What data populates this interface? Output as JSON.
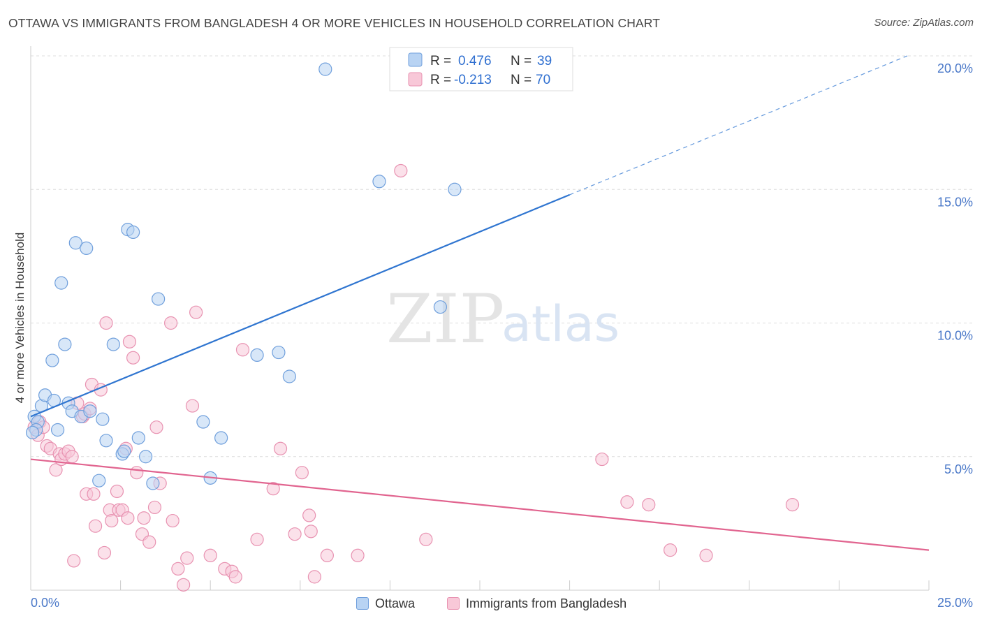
{
  "title": "OTTAWA VS IMMIGRANTS FROM BANGLADESH 4 OR MORE VEHICLES IN HOUSEHOLD CORRELATION CHART",
  "source": "Source: ZipAtlas.com",
  "watermark": {
    "zip": "ZIP",
    "atlas": "atlas"
  },
  "colors": {
    "ottawa_fill": "#b8d3f3",
    "ottawa_stroke": "#6f9fdc",
    "ottawa_line": "#2f75d0",
    "bangladesh_fill": "#f8c8d8",
    "bangladesh_stroke": "#e892b1",
    "bangladesh_line": "#e1648f",
    "tick_text": "#4a78c8",
    "grid": "#dcdcdc"
  },
  "legend": {
    "rows": [
      {
        "r_label": "R =",
        "r_value": "0.476",
        "n_label": "N =",
        "n_value": "39"
      },
      {
        "r_label": "R =",
        "r_value": "-0.213",
        "n_label": "N =",
        "n_value": "70"
      }
    ]
  },
  "bottom_legend": {
    "series1": "Ottawa",
    "series2": "Immigrants from Bangladesh"
  },
  "chart_data": {
    "type": "scatter",
    "title": "OTTAWA VS IMMIGRANTS FROM BANGLADESH 4 OR MORE VEHICLES IN HOUSEHOLD CORRELATION CHART",
    "xlabel": "",
    "ylabel": "4 or more Vehicles in Household",
    "xlim": [
      0,
      25
    ],
    "ylim": [
      0,
      20
    ],
    "x_tick_labels": [
      "0.0%",
      "25.0%"
    ],
    "y_ticks": [
      5,
      10,
      15,
      20
    ],
    "y_tick_labels": [
      "5.0%",
      "10.0%",
      "15.0%",
      "20.0%"
    ],
    "grid": true,
    "legend_placement": "top-center",
    "series": [
      {
        "name": "Ottawa",
        "r": 0.476,
        "n": 39,
        "trend": {
          "x0": 0,
          "y0": 6.5,
          "x1": 15,
          "y1": 14.8,
          "dashed_to_x": 24.4
        },
        "points": [
          [
            0.1,
            6.5
          ],
          [
            0.2,
            6.3
          ],
          [
            0.3,
            6.9
          ],
          [
            0.4,
            7.3
          ],
          [
            0.6,
            8.6
          ],
          [
            0.65,
            7.1
          ],
          [
            0.75,
            6.0
          ],
          [
            0.85,
            11.5
          ],
          [
            0.95,
            9.2
          ],
          [
            1.05,
            7.0
          ],
          [
            1.15,
            6.7
          ],
          [
            1.25,
            13.0
          ],
          [
            1.4,
            6.5
          ],
          [
            1.55,
            12.8
          ],
          [
            1.65,
            6.7
          ],
          [
            1.9,
            4.1
          ],
          [
            2.0,
            6.4
          ],
          [
            2.1,
            5.6
          ],
          [
            2.3,
            9.2
          ],
          [
            2.55,
            5.1
          ],
          [
            2.6,
            5.2
          ],
          [
            2.7,
            13.5
          ],
          [
            2.85,
            13.4
          ],
          [
            3.0,
            5.7
          ],
          [
            3.2,
            5.0
          ],
          [
            3.4,
            4.0
          ],
          [
            3.55,
            10.9
          ],
          [
            4.8,
            6.3
          ],
          [
            5.0,
            4.2
          ],
          [
            5.3,
            5.7
          ],
          [
            6.3,
            8.8
          ],
          [
            6.9,
            8.9
          ],
          [
            7.2,
            8.0
          ],
          [
            8.2,
            19.5
          ],
          [
            9.7,
            15.3
          ],
          [
            11.4,
            10.6
          ],
          [
            11.8,
            15.0
          ],
          [
            0.15,
            6.0
          ],
          [
            0.05,
            5.9
          ]
        ]
      },
      {
        "name": "Immigrants from Bangladesh",
        "r": -0.213,
        "n": 70,
        "trend": {
          "x0": 0,
          "y0": 4.9,
          "x1": 25,
          "y1": 1.5
        },
        "points": [
          [
            0.1,
            6.1
          ],
          [
            0.2,
            5.8
          ],
          [
            0.25,
            6.3
          ],
          [
            0.35,
            6.1
          ],
          [
            0.45,
            5.4
          ],
          [
            0.55,
            5.3
          ],
          [
            0.7,
            4.5
          ],
          [
            0.8,
            5.1
          ],
          [
            0.85,
            4.9
          ],
          [
            0.95,
            5.1
          ],
          [
            1.05,
            5.2
          ],
          [
            1.15,
            5.0
          ],
          [
            1.2,
            1.1
          ],
          [
            1.3,
            7.0
          ],
          [
            1.45,
            6.5
          ],
          [
            1.5,
            6.6
          ],
          [
            1.55,
            3.6
          ],
          [
            1.65,
            6.8
          ],
          [
            1.7,
            7.7
          ],
          [
            1.75,
            3.6
          ],
          [
            1.8,
            2.4
          ],
          [
            1.95,
            7.5
          ],
          [
            2.05,
            1.4
          ],
          [
            2.1,
            10.0
          ],
          [
            2.2,
            3.0
          ],
          [
            2.25,
            2.6
          ],
          [
            2.4,
            3.7
          ],
          [
            2.45,
            3.0
          ],
          [
            2.55,
            3.0
          ],
          [
            2.65,
            5.3
          ],
          [
            2.7,
            2.7
          ],
          [
            2.75,
            9.3
          ],
          [
            2.85,
            8.7
          ],
          [
            2.95,
            4.4
          ],
          [
            3.1,
            2.1
          ],
          [
            3.15,
            2.7
          ],
          [
            3.3,
            1.8
          ],
          [
            3.45,
            3.1
          ],
          [
            3.5,
            6.1
          ],
          [
            3.6,
            4.0
          ],
          [
            3.9,
            10.0
          ],
          [
            3.95,
            2.6
          ],
          [
            4.1,
            0.8
          ],
          [
            4.25,
            0.2
          ],
          [
            4.35,
            1.2
          ],
          [
            4.5,
            6.9
          ],
          [
            4.6,
            10.4
          ],
          [
            5.0,
            1.3
          ],
          [
            5.4,
            0.8
          ],
          [
            5.6,
            0.7
          ],
          [
            5.7,
            0.5
          ],
          [
            5.9,
            9.0
          ],
          [
            6.3,
            1.9
          ],
          [
            6.75,
            3.8
          ],
          [
            6.95,
            5.3
          ],
          [
            7.35,
            2.1
          ],
          [
            7.55,
            4.4
          ],
          [
            7.75,
            2.8
          ],
          [
            7.8,
            2.2
          ],
          [
            7.9,
            0.5
          ],
          [
            8.25,
            1.3
          ],
          [
            9.1,
            1.3
          ],
          [
            10.3,
            15.7
          ],
          [
            11.0,
            1.9
          ],
          [
            15.9,
            4.9
          ],
          [
            16.6,
            3.3
          ],
          [
            17.2,
            3.2
          ],
          [
            17.8,
            1.5
          ],
          [
            18.8,
            1.3
          ],
          [
            21.2,
            3.2
          ]
        ]
      }
    ]
  }
}
